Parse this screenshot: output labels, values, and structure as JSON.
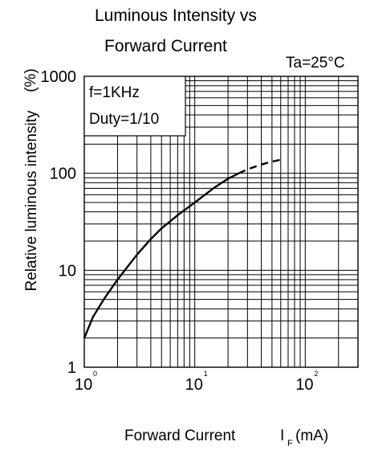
{
  "chart_data": {
    "type": "line",
    "title_line1": "Luminous Intensity vs",
    "title_line2": "Forward Current",
    "condition": "Ta=25°C",
    "xlabel": "Forward Current",
    "xunit_main": "I",
    "xunit_sub": "F",
    "xunit_tail": "(mA)",
    "ylabel": "Relative luminous intensity",
    "yunit": "(%)",
    "x_scale": "log",
    "y_scale": "log",
    "xlim": [
      1,
      300
    ],
    "ylim": [
      1,
      1000
    ],
    "grid": true,
    "x_ticks": [
      {
        "base": "10",
        "exp": "0",
        "value": 1
      },
      {
        "base": "10",
        "exp": "1",
        "value": 10
      },
      {
        "base": "10",
        "exp": "2",
        "value": 100
      }
    ],
    "y_ticks": [
      {
        "label": "1",
        "value": 1
      },
      {
        "label": "10",
        "value": 10
      },
      {
        "label": "100",
        "value": 100
      },
      {
        "label": "1000",
        "value": 1000
      }
    ],
    "annotation_lines": [
      "f=1KHz",
      "Duty=1/10"
    ],
    "series": [
      {
        "style": "solid",
        "x": [
          1,
          1.2,
          1.5,
          2,
          3,
          4,
          5,
          7,
          10,
          15,
          20,
          25
        ],
        "y": [
          2,
          3.3,
          5,
          8,
          14.5,
          21,
          27,
          37,
          50,
          71,
          88,
          100
        ]
      },
      {
        "style": "dashed",
        "x": [
          25,
          30,
          40,
          50,
          60
        ],
        "y": [
          100,
          110,
          123,
          132,
          138
        ]
      }
    ]
  }
}
